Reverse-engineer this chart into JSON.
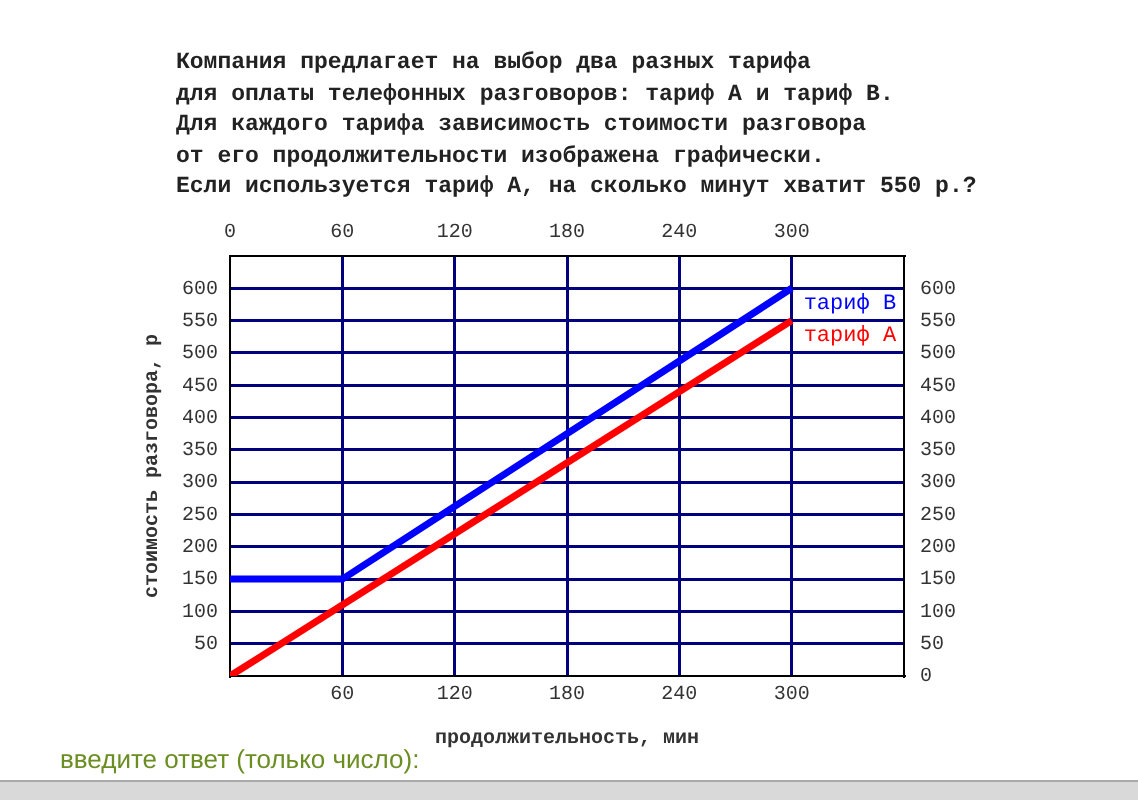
{
  "chart_data": {
    "type": "line",
    "title": "Компания предлагает на выбор два разных тарифа\nдля оплаты телефонных разговоров: тариф А и тариф В.\nДля каждого тарифа зависимость стоимости разговора\nот его продолжительности изображена графически.\nЕсли используется тариф А, на сколько минут хватит 550 р.?",
    "xlabel": "продолжительность, мин",
    "ylabel": "стоимость разговора, р",
    "annotations": [
      "введите ответ (только число):"
    ],
    "series": [
      {
        "name": "тариф В",
        "color": "#0000ff",
        "x": [
          0,
          60,
          300
        ],
        "values": [
          150,
          150,
          600
        ]
      },
      {
        "name": "тариф А",
        "color": "#ff0000",
        "x": [
          0,
          300
        ],
        "values": [
          0,
          550
        ]
      }
    ],
    "xlim": [
      0,
      360
    ],
    "xticks": [
      60,
      120,
      180,
      240,
      300
    ],
    "x2lim": [
      0,
      360
    ],
    "x2ticks": [
      0,
      60,
      120,
      180,
      240,
      300
    ],
    "ylim": [
      0,
      650
    ],
    "yticks": [
      50,
      100,
      150,
      200,
      250,
      300,
      350,
      400,
      450,
      500,
      550,
      600
    ],
    "y2lim": [
      0,
      650
    ],
    "y2ticks": [
      0,
      50,
      100,
      150,
      200,
      250,
      300,
      350,
      400,
      450,
      500,
      550,
      600
    ],
    "grid": true,
    "marker": "none",
    "line_style": "solid"
  }
}
